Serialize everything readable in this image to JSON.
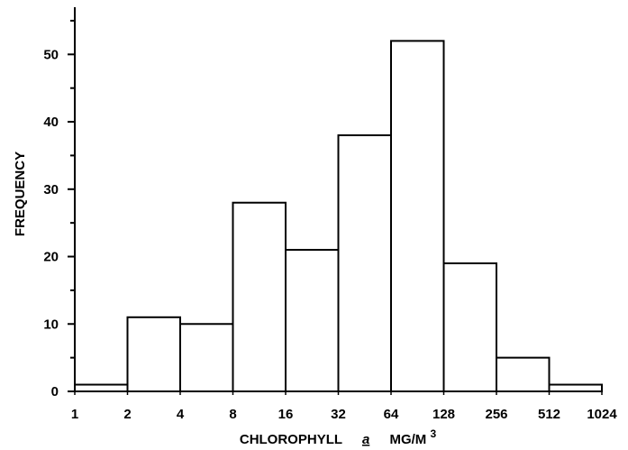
{
  "chart_data": {
    "type": "bar",
    "title": "",
    "xlabel": {
      "prefix": "CHLOROPHYLL",
      "italic": "a",
      "unit": "MG/M",
      "superscript": "3"
    },
    "ylabel": "FREQUENCY",
    "x_scale": "log2",
    "x_ticks": [
      "1",
      "2",
      "4",
      "8",
      "16",
      "32",
      "64",
      "128",
      "256",
      "512",
      "1024"
    ],
    "x_tick_values": [
      1,
      2,
      4,
      8,
      16,
      32,
      64,
      128,
      256,
      512,
      1024
    ],
    "y_ticks": [
      0,
      10,
      20,
      30,
      40,
      50
    ],
    "ylim": [
      0,
      57
    ],
    "grid": false,
    "bins": [
      {
        "from": 1,
        "to": 2,
        "value": 1
      },
      {
        "from": 2,
        "to": 4,
        "value": 11
      },
      {
        "from": 4,
        "to": 8,
        "value": 10
      },
      {
        "from": 8,
        "to": 16,
        "value": 28
      },
      {
        "from": 16,
        "to": 32,
        "value": 21
      },
      {
        "from": 32,
        "to": 64,
        "value": 38
      },
      {
        "from": 64,
        "to": 128,
        "value": 52
      },
      {
        "from": 128,
        "to": 256,
        "value": 19
      },
      {
        "from": 256,
        "to": 512,
        "value": 5
      },
      {
        "from": 512,
        "to": 1024,
        "value": 1
      }
    ],
    "colors": {
      "bar_fill": "#ffffff",
      "stroke": "#000000"
    }
  }
}
